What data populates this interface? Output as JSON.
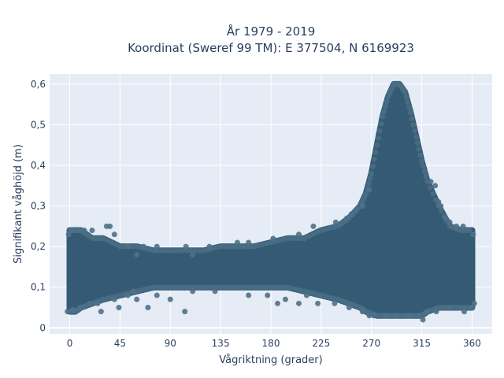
{
  "chart_data": {
    "type": "scatter",
    "title_line1": "År 1979 - 2019",
    "title_line2": "Koordinat (Sweref 99 TM): E 377504, N 6169923",
    "xlabel": "Vågriktning (grader)",
    "ylabel": "Signifikant våghöjd (m)",
    "xlim": [
      -18,
      378
    ],
    "ylim": [
      -0.015,
      0.625
    ],
    "x_ticks": [
      0,
      45,
      90,
      135,
      180,
      225,
      270,
      315,
      360
    ],
    "x_tick_labels": [
      "0",
      "45",
      "90",
      "135",
      "180",
      "225",
      "270",
      "315",
      "360"
    ],
    "y_ticks": [
      0,
      0.1,
      0.2,
      0.3,
      0.4,
      0.5,
      0.6
    ],
    "y_tick_labels": [
      "0",
      "0,1",
      "0,2",
      "0,3",
      "0,4",
      "0,5",
      "0,6"
    ],
    "grid": true,
    "plot_bg": "#e5ecf6",
    "marker_color": "#2f5670",
    "envelope": {
      "x": [
        0,
        5,
        10,
        20,
        30,
        45,
        60,
        75,
        90,
        105,
        120,
        135,
        150,
        165,
        180,
        195,
        210,
        225,
        240,
        250,
        260,
        265,
        270,
        275,
        280,
        285,
        290,
        295,
        300,
        305,
        310,
        315,
        320,
        330,
        340,
        350,
        360
      ],
      "upper": [
        0.24,
        0.24,
        0.24,
        0.22,
        0.22,
        0.2,
        0.2,
        0.19,
        0.19,
        0.19,
        0.19,
        0.2,
        0.2,
        0.2,
        0.21,
        0.22,
        0.22,
        0.24,
        0.25,
        0.27,
        0.3,
        0.33,
        0.38,
        0.45,
        0.52,
        0.57,
        0.6,
        0.6,
        0.58,
        0.53,
        0.47,
        0.41,
        0.36,
        0.3,
        0.25,
        0.24,
        0.24
      ],
      "lower": [
        0.04,
        0.04,
        0.05,
        0.06,
        0.07,
        0.08,
        0.09,
        0.1,
        0.1,
        0.1,
        0.1,
        0.1,
        0.1,
        0.1,
        0.1,
        0.1,
        0.09,
        0.08,
        0.07,
        0.06,
        0.05,
        0.04,
        0.035,
        0.03,
        0.03,
        0.03,
        0.03,
        0.03,
        0.03,
        0.03,
        0.03,
        0.03,
        0.04,
        0.05,
        0.05,
        0.05,
        0.05
      ]
    },
    "points": [
      [
        33,
        0.25
      ],
      [
        36,
        0.25
      ],
      [
        40,
        0.23
      ],
      [
        52,
        0.2
      ],
      [
        60,
        0.18
      ],
      [
        66,
        0.2
      ],
      [
        78,
        0.2
      ],
      [
        104,
        0.2
      ],
      [
        110,
        0.18
      ],
      [
        125,
        0.2
      ],
      [
        150,
        0.21
      ],
      [
        160,
        0.21
      ],
      [
        182,
        0.22
      ],
      [
        205,
        0.23
      ],
      [
        218,
        0.25
      ],
      [
        238,
        0.26
      ],
      [
        248,
        0.27
      ],
      [
        252,
        0.28
      ],
      [
        256,
        0.29
      ],
      [
        262,
        0.3
      ],
      [
        268,
        0.34
      ],
      [
        323,
        0.36
      ],
      [
        327,
        0.35
      ],
      [
        330,
        0.31
      ],
      [
        332,
        0.3
      ],
      [
        336,
        0.27
      ],
      [
        340,
        0.26
      ],
      [
        346,
        0.25
      ],
      [
        352,
        0.25
      ],
      [
        -2,
        0.04
      ],
      [
        3,
        0.045
      ],
      [
        10,
        0.05
      ],
      [
        18,
        0.06
      ],
      [
        25,
        0.06
      ],
      [
        28,
        0.04
      ],
      [
        40,
        0.07
      ],
      [
        44,
        0.05
      ],
      [
        52,
        0.08
      ],
      [
        57,
        0.09
      ],
      [
        60,
        0.07
      ],
      [
        70,
        0.05
      ],
      [
        78,
        0.08
      ],
      [
        90,
        0.07
      ],
      [
        103,
        0.04
      ],
      [
        110,
        0.09
      ],
      [
        130,
        0.09
      ],
      [
        160,
        0.08
      ],
      [
        177,
        0.08
      ],
      [
        186,
        0.06
      ],
      [
        193,
        0.07
      ],
      [
        205,
        0.06
      ],
      [
        212,
        0.08
      ],
      [
        222,
        0.06
      ],
      [
        237,
        0.06
      ],
      [
        250,
        0.05
      ],
      [
        262,
        0.04
      ],
      [
        268,
        0.03
      ],
      [
        272,
        0.03
      ],
      [
        283,
        0.03
      ],
      [
        292,
        0.03
      ],
      [
        303,
        0.03
      ],
      [
        313,
        0.03
      ],
      [
        316,
        0.02
      ],
      [
        320,
        0.04
      ],
      [
        328,
        0.04
      ],
      [
        340,
        0.05
      ],
      [
        353,
        0.04
      ],
      [
        360,
        0.05
      ],
      [
        362,
        0.06
      ],
      [
        361,
        0.23
      ],
      [
        -1,
        0.23
      ],
      [
        2,
        0.24
      ],
      [
        8,
        0.24
      ],
      [
        13,
        0.24
      ],
      [
        20,
        0.24
      ]
    ]
  }
}
